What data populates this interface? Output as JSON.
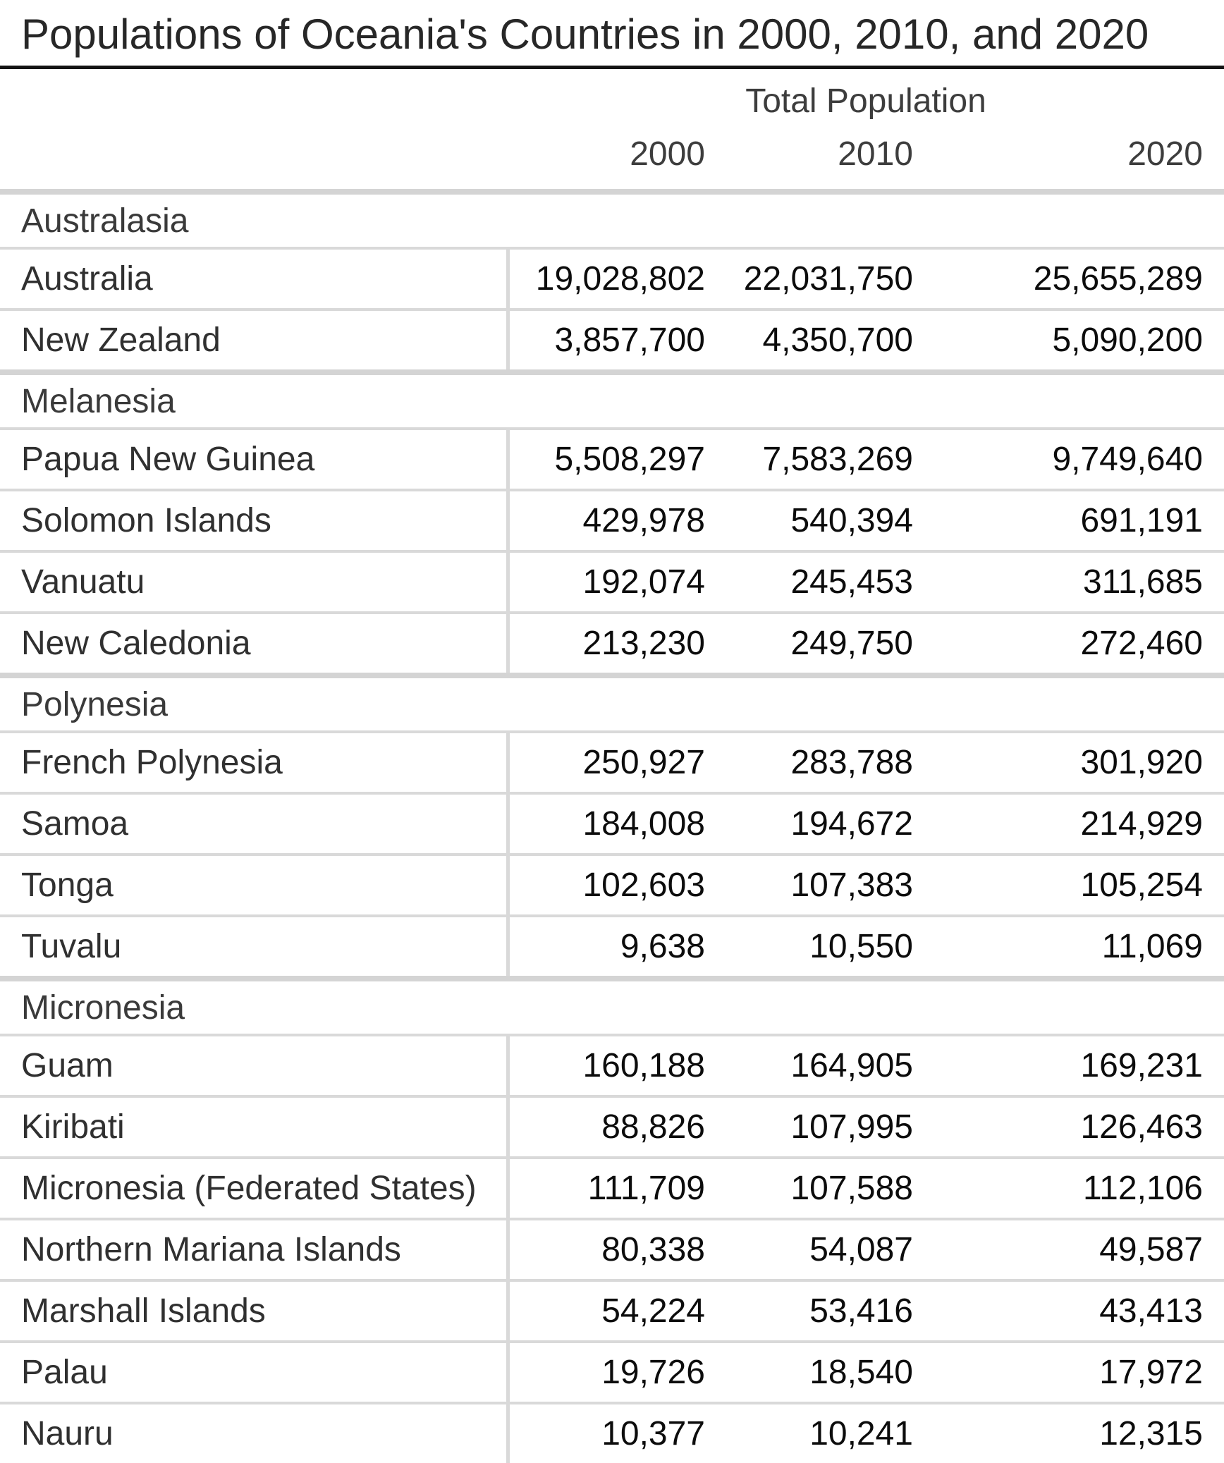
{
  "title": "Populations of Oceania's Countries in 2000, 2010, and 2020",
  "table": {
    "column_group_header": "Total Population",
    "year_columns": [
      "2000",
      "2010",
      "2020"
    ],
    "groups": [
      {
        "name": "Australasia",
        "rows": [
          {
            "country": "Australia",
            "values": [
              "19,028,802",
              "22,031,750",
              "25,655,289"
            ]
          },
          {
            "country": "New Zealand",
            "values": [
              "3,857,700",
              "4,350,700",
              "5,090,200"
            ]
          }
        ]
      },
      {
        "name": "Melanesia",
        "rows": [
          {
            "country": "Papua New Guinea",
            "values": [
              "5,508,297",
              "7,583,269",
              "9,749,640"
            ]
          },
          {
            "country": "Solomon Islands",
            "values": [
              "429,978",
              "540,394",
              "691,191"
            ]
          },
          {
            "country": "Vanuatu",
            "values": [
              "192,074",
              "245,453",
              "311,685"
            ]
          },
          {
            "country": "New Caledonia",
            "values": [
              "213,230",
              "249,750",
              "272,460"
            ]
          }
        ]
      },
      {
        "name": "Polynesia",
        "rows": [
          {
            "country": "French Polynesia",
            "values": [
              "250,927",
              "283,788",
              "301,920"
            ]
          },
          {
            "country": "Samoa",
            "values": [
              "184,008",
              "194,672",
              "214,929"
            ]
          },
          {
            "country": "Tonga",
            "values": [
              "102,603",
              "107,383",
              "105,254"
            ]
          },
          {
            "country": "Tuvalu",
            "values": [
              "9,638",
              "10,550",
              "11,069"
            ]
          }
        ]
      },
      {
        "name": "Micronesia",
        "rows": [
          {
            "country": "Guam",
            "values": [
              "160,188",
              "164,905",
              "169,231"
            ]
          },
          {
            "country": "Kiribati",
            "values": [
              "88,826",
              "107,995",
              "126,463"
            ]
          },
          {
            "country": "Micronesia (Federated States)",
            "values": [
              "111,709",
              "107,588",
              "112,106"
            ]
          },
          {
            "country": "Northern Mariana Islands",
            "values": [
              "80,338",
              "54,087",
              "49,587"
            ]
          },
          {
            "country": "Marshall Islands",
            "values": [
              "54,224",
              "53,416",
              "43,413"
            ]
          },
          {
            "country": "Palau",
            "values": [
              "19,726",
              "18,540",
              "17,972"
            ]
          },
          {
            "country": "Nauru",
            "values": [
              "10,377",
              "10,241",
              "12,315"
            ]
          }
        ]
      }
    ]
  },
  "colors": {
    "title_rule": "#141414",
    "separator_gray": "#d4d4d4",
    "row_line_gray": "#d9d9d9",
    "text_dark": "#0c0c0c",
    "text_gray": "#3d3d3d"
  },
  "chart_data": {
    "type": "table",
    "title": "Populations of Oceania's Countries in 2000, 2010, and 2020",
    "column_group": "Total Population",
    "columns": [
      "2000",
      "2010",
      "2020"
    ],
    "groups": [
      {
        "name": "Australasia",
        "rows": [
          {
            "country": "Australia",
            "values": [
              19028802,
              22031750,
              25655289
            ]
          },
          {
            "country": "New Zealand",
            "values": [
              3857700,
              4350700,
              5090200
            ]
          }
        ]
      },
      {
        "name": "Melanesia",
        "rows": [
          {
            "country": "Papua New Guinea",
            "values": [
              5508297,
              7583269,
              9749640
            ]
          },
          {
            "country": "Solomon Islands",
            "values": [
              429978,
              540394,
              691191
            ]
          },
          {
            "country": "Vanuatu",
            "values": [
              192074,
              245453,
              311685
            ]
          },
          {
            "country": "New Caledonia",
            "values": [
              213230,
              249750,
              272460
            ]
          }
        ]
      },
      {
        "name": "Polynesia",
        "rows": [
          {
            "country": "French Polynesia",
            "values": [
              250927,
              283788,
              301920
            ]
          },
          {
            "country": "Samoa",
            "values": [
              184008,
              194672,
              214929
            ]
          },
          {
            "country": "Tonga",
            "values": [
              102603,
              107383,
              105254
            ]
          },
          {
            "country": "Tuvalu",
            "values": [
              9638,
              10550,
              11069
            ]
          }
        ]
      },
      {
        "name": "Micronesia",
        "rows": [
          {
            "country": "Guam",
            "values": [
              160188,
              164905,
              169231
            ]
          },
          {
            "country": "Kiribati",
            "values": [
              88826,
              107995,
              126463
            ]
          },
          {
            "country": "Micronesia (Federated States)",
            "values": [
              111709,
              107588,
              112106
            ]
          },
          {
            "country": "Northern Mariana Islands",
            "values": [
              80338,
              54087,
              49587
            ]
          },
          {
            "country": "Marshall Islands",
            "values": [
              54224,
              53416,
              43413
            ]
          },
          {
            "country": "Palau",
            "values": [
              19726,
              18540,
              17972
            ]
          },
          {
            "country": "Nauru",
            "values": [
              10377,
              10241,
              12315
            ]
          }
        ]
      }
    ]
  }
}
